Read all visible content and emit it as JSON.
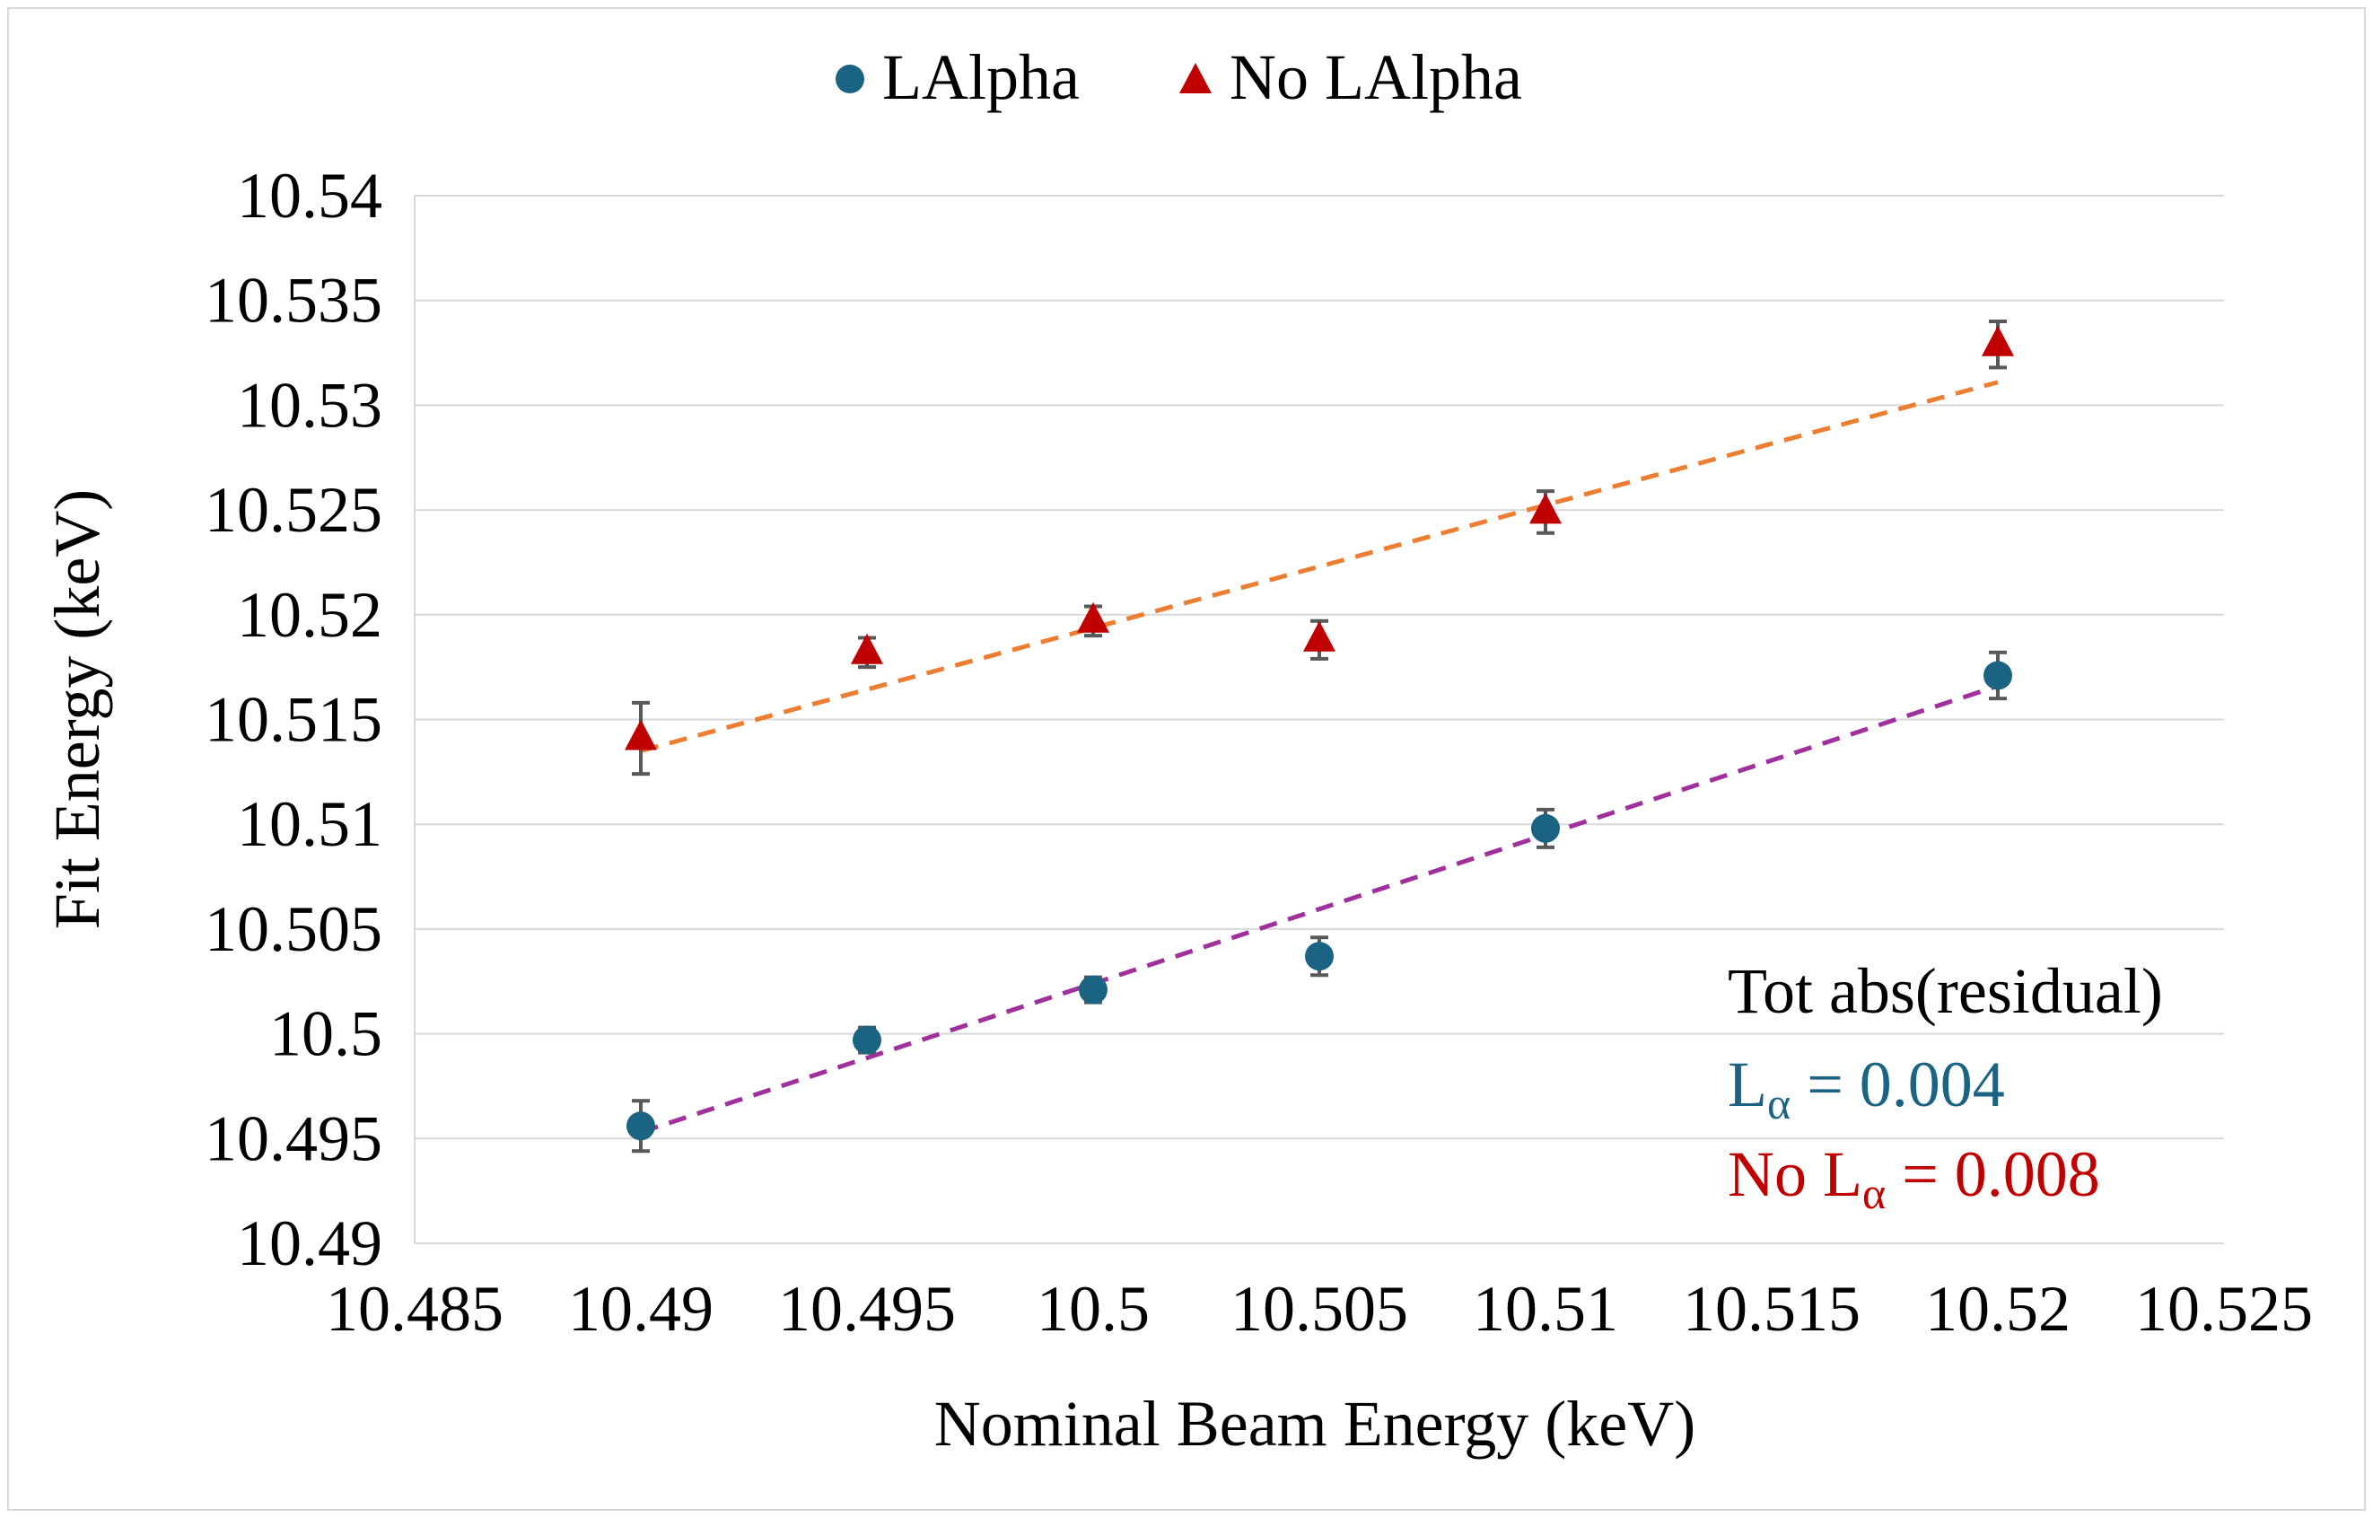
{
  "chart_data": {
    "type": "scatter",
    "title": "",
    "xlabel": "Nominal Beam Energy (keV)",
    "ylabel": "Fit Energy (keV)",
    "xlim": [
      10.485,
      10.525
    ],
    "ylim": [
      10.49,
      10.54
    ],
    "x_ticks": [
      "10.485",
      "10.49",
      "10.495",
      "10.5",
      "10.505",
      "10.51",
      "10.515",
      "10.52",
      "10.525"
    ],
    "y_ticks": [
      "10.49",
      "10.495",
      "10.5",
      "10.505",
      "10.51",
      "10.515",
      "10.52",
      "10.525",
      "10.53",
      "10.535",
      "10.54"
    ],
    "gridlines": "horizontal",
    "legend_position": "top-center",
    "series": [
      {
        "name": "LAlpha",
        "marker": "circle",
        "color": "#1b6383",
        "trend_color": "#a0309c",
        "x": [
          10.49,
          10.495,
          10.5,
          10.505,
          10.51,
          10.52
        ],
        "y": [
          10.4956,
          10.4997,
          10.5021,
          10.5037,
          10.5098,
          10.5171
        ],
        "err": [
          0.0012,
          0.0006,
          0.0006,
          0.0009,
          0.0009,
          0.0011
        ],
        "trend": [
          [
            10.49,
            10.4953
          ],
          [
            10.52,
            10.5166
          ]
        ]
      },
      {
        "name": "No LAlpha",
        "marker": "triangle",
        "color": "#c00000",
        "trend_color": "#ed7d31",
        "x": [
          10.49,
          10.495,
          10.5,
          10.505,
          10.51,
          10.52
        ],
        "y": [
          10.5141,
          10.5182,
          10.5197,
          10.5188,
          10.5249,
          10.5329
        ],
        "err": [
          0.0017,
          0.0007,
          0.0007,
          0.0009,
          0.001,
          0.0011
        ],
        "trend": [
          [
            10.49,
            10.5135
          ],
          [
            10.52,
            10.5311
          ]
        ]
      }
    ],
    "annotation": {
      "heading": "Tot abs(residual)",
      "line1": {
        "base": "L",
        "sub": "α",
        "rest": " = 0.004",
        "color": "#1b6383"
      },
      "line2": {
        "prefix": "No ",
        "base": "L",
        "sub": "α",
        "rest": " = 0.008",
        "color": "#c00000"
      }
    }
  }
}
